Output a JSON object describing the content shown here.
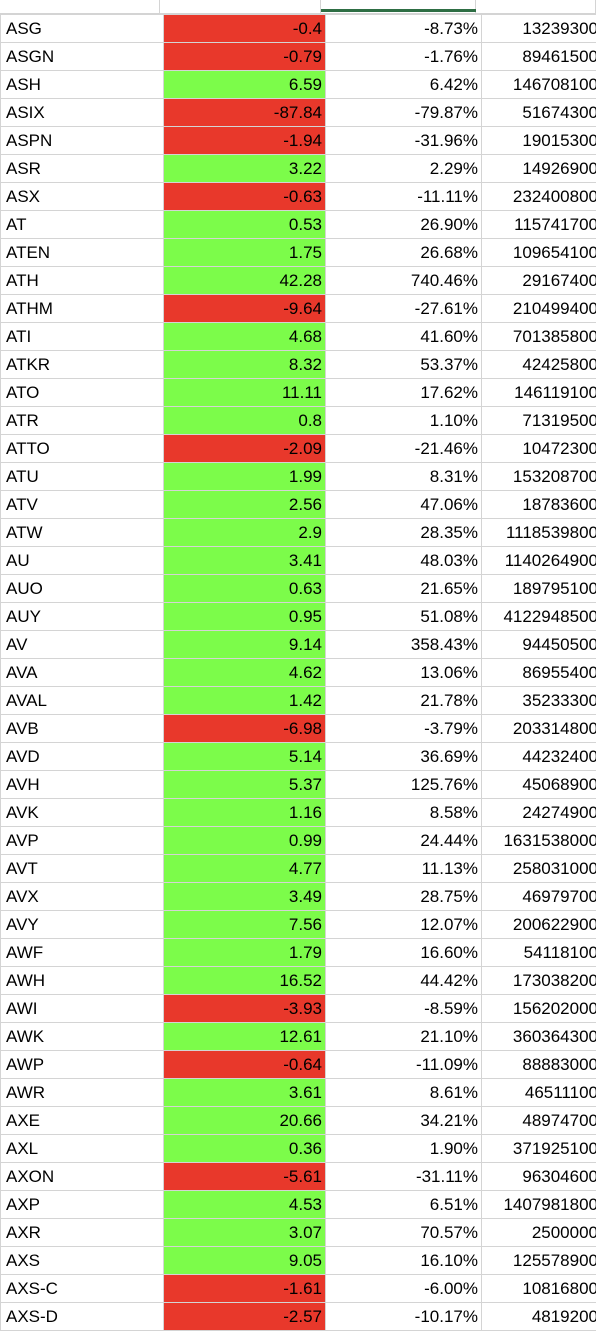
{
  "colors": {
    "positive_fill": "#7cfc4a",
    "negative_fill": "#e8382b",
    "gridline": "#d4d4d4",
    "selection": "#2e6e44"
  },
  "rows": [
    {
      "symbol": "ASG",
      "change": "-0.4",
      "pct": "-8.73%",
      "volume": "13239300",
      "trend": "neg"
    },
    {
      "symbol": "ASGN",
      "change": "-0.79",
      "pct": "-1.76%",
      "volume": "89461500",
      "trend": "neg"
    },
    {
      "symbol": "ASH",
      "change": "6.59",
      "pct": "6.42%",
      "volume": "146708100",
      "trend": "pos"
    },
    {
      "symbol": "ASIX",
      "change": "-87.84",
      "pct": "-79.87%",
      "volume": "51674300",
      "trend": "neg"
    },
    {
      "symbol": "ASPN",
      "change": "-1.94",
      "pct": "-31.96%",
      "volume": "19015300",
      "trend": "neg"
    },
    {
      "symbol": "ASR",
      "change": "3.22",
      "pct": "2.29%",
      "volume": "14926900",
      "trend": "pos"
    },
    {
      "symbol": "ASX",
      "change": "-0.63",
      "pct": "-11.11%",
      "volume": "232400800",
      "trend": "neg"
    },
    {
      "symbol": "AT",
      "change": "0.53",
      "pct": "26.90%",
      "volume": "115741700",
      "trend": "pos"
    },
    {
      "symbol": "ATEN",
      "change": "1.75",
      "pct": "26.68%",
      "volume": "109654100",
      "trend": "pos"
    },
    {
      "symbol": "ATH",
      "change": "42.28",
      "pct": "740.46%",
      "volume": "29167400",
      "trend": "pos"
    },
    {
      "symbol": "ATHM",
      "change": "-9.64",
      "pct": "-27.61%",
      "volume": "210499400",
      "trend": "neg"
    },
    {
      "symbol": "ATI",
      "change": "4.68",
      "pct": "41.60%",
      "volume": "701385800",
      "trend": "pos"
    },
    {
      "symbol": "ATKR",
      "change": "8.32",
      "pct": "53.37%",
      "volume": "42425800",
      "trend": "pos"
    },
    {
      "symbol": "ATO",
      "change": "11.11",
      "pct": "17.62%",
      "volume": "146119100",
      "trend": "pos"
    },
    {
      "symbol": "ATR",
      "change": "0.8",
      "pct": "1.10%",
      "volume": "71319500",
      "trend": "pos"
    },
    {
      "symbol": "ATTO",
      "change": "-2.09",
      "pct": "-21.46%",
      "volume": "10472300",
      "trend": "neg"
    },
    {
      "symbol": "ATU",
      "change": "1.99",
      "pct": "8.31%",
      "volume": "153208700",
      "trend": "pos"
    },
    {
      "symbol": "ATV",
      "change": "2.56",
      "pct": "47.06%",
      "volume": "18783600",
      "trend": "pos"
    },
    {
      "symbol": "ATW",
      "change": "2.9",
      "pct": "28.35%",
      "volume": "1118539800",
      "trend": "pos"
    },
    {
      "symbol": "AU",
      "change": "3.41",
      "pct": "48.03%",
      "volume": "1140264900",
      "trend": "pos"
    },
    {
      "symbol": "AUO",
      "change": "0.63",
      "pct": "21.65%",
      "volume": "189795100",
      "trend": "pos"
    },
    {
      "symbol": "AUY",
      "change": "0.95",
      "pct": "51.08%",
      "volume": "4122948500",
      "trend": "pos"
    },
    {
      "symbol": "AV",
      "change": "9.14",
      "pct": "358.43%",
      "volume": "94450500",
      "trend": "pos"
    },
    {
      "symbol": "AVA",
      "change": "4.62",
      "pct": "13.06%",
      "volume": "86955400",
      "trend": "pos"
    },
    {
      "symbol": "AVAL",
      "change": "1.42",
      "pct": "21.78%",
      "volume": "35233300",
      "trend": "pos"
    },
    {
      "symbol": "AVB",
      "change": "-6.98",
      "pct": "-3.79%",
      "volume": "203314800",
      "trend": "neg"
    },
    {
      "symbol": "AVD",
      "change": "5.14",
      "pct": "36.69%",
      "volume": "44232400",
      "trend": "pos"
    },
    {
      "symbol": "AVH",
      "change": "5.37",
      "pct": "125.76%",
      "volume": "45068900",
      "trend": "pos"
    },
    {
      "symbol": "AVK",
      "change": "1.16",
      "pct": "8.58%",
      "volume": "24274900",
      "trend": "pos"
    },
    {
      "symbol": "AVP",
      "change": "0.99",
      "pct": "24.44%",
      "volume": "1631538000",
      "trend": "pos"
    },
    {
      "symbol": "AVT",
      "change": "4.77",
      "pct": "11.13%",
      "volume": "258031000",
      "trend": "pos"
    },
    {
      "symbol": "AVX",
      "change": "3.49",
      "pct": "28.75%",
      "volume": "46979700",
      "trend": "pos"
    },
    {
      "symbol": "AVY",
      "change": "7.56",
      "pct": "12.07%",
      "volume": "200622900",
      "trend": "pos"
    },
    {
      "symbol": "AWF",
      "change": "1.79",
      "pct": "16.60%",
      "volume": "54118100",
      "trend": "pos"
    },
    {
      "symbol": "AWH",
      "change": "16.52",
      "pct": "44.42%",
      "volume": "173038200",
      "trend": "pos"
    },
    {
      "symbol": "AWI",
      "change": "-3.93",
      "pct": "-8.59%",
      "volume": "156202000",
      "trend": "neg"
    },
    {
      "symbol": "AWK",
      "change": "12.61",
      "pct": "21.10%",
      "volume": "360364300",
      "trend": "pos"
    },
    {
      "symbol": "AWP",
      "change": "-0.64",
      "pct": "-11.09%",
      "volume": "88883000",
      "trend": "neg"
    },
    {
      "symbol": "AWR",
      "change": "3.61",
      "pct": "8.61%",
      "volume": "46511100",
      "trend": "pos"
    },
    {
      "symbol": "AXE",
      "change": "20.66",
      "pct": "34.21%",
      "volume": "48974700",
      "trend": "pos"
    },
    {
      "symbol": "AXL",
      "change": "0.36",
      "pct": "1.90%",
      "volume": "371925100",
      "trend": "pos"
    },
    {
      "symbol": "AXON",
      "change": "-5.61",
      "pct": "-31.11%",
      "volume": "96304600",
      "trend": "neg"
    },
    {
      "symbol": "AXP",
      "change": "4.53",
      "pct": "6.51%",
      "volume": "1407981800",
      "trend": "pos"
    },
    {
      "symbol": "AXR",
      "change": "3.07",
      "pct": "70.57%",
      "volume": "2500000",
      "trend": "pos"
    },
    {
      "symbol": "AXS",
      "change": "9.05",
      "pct": "16.10%",
      "volume": "125578900",
      "trend": "pos"
    },
    {
      "symbol": "AXS-C",
      "change": "-1.61",
      "pct": "-6.00%",
      "volume": "10816800",
      "trend": "neg"
    },
    {
      "symbol": "AXS-D",
      "change": "-2.57",
      "pct": "-10.17%",
      "volume": "4819200",
      "trend": "neg"
    }
  ]
}
